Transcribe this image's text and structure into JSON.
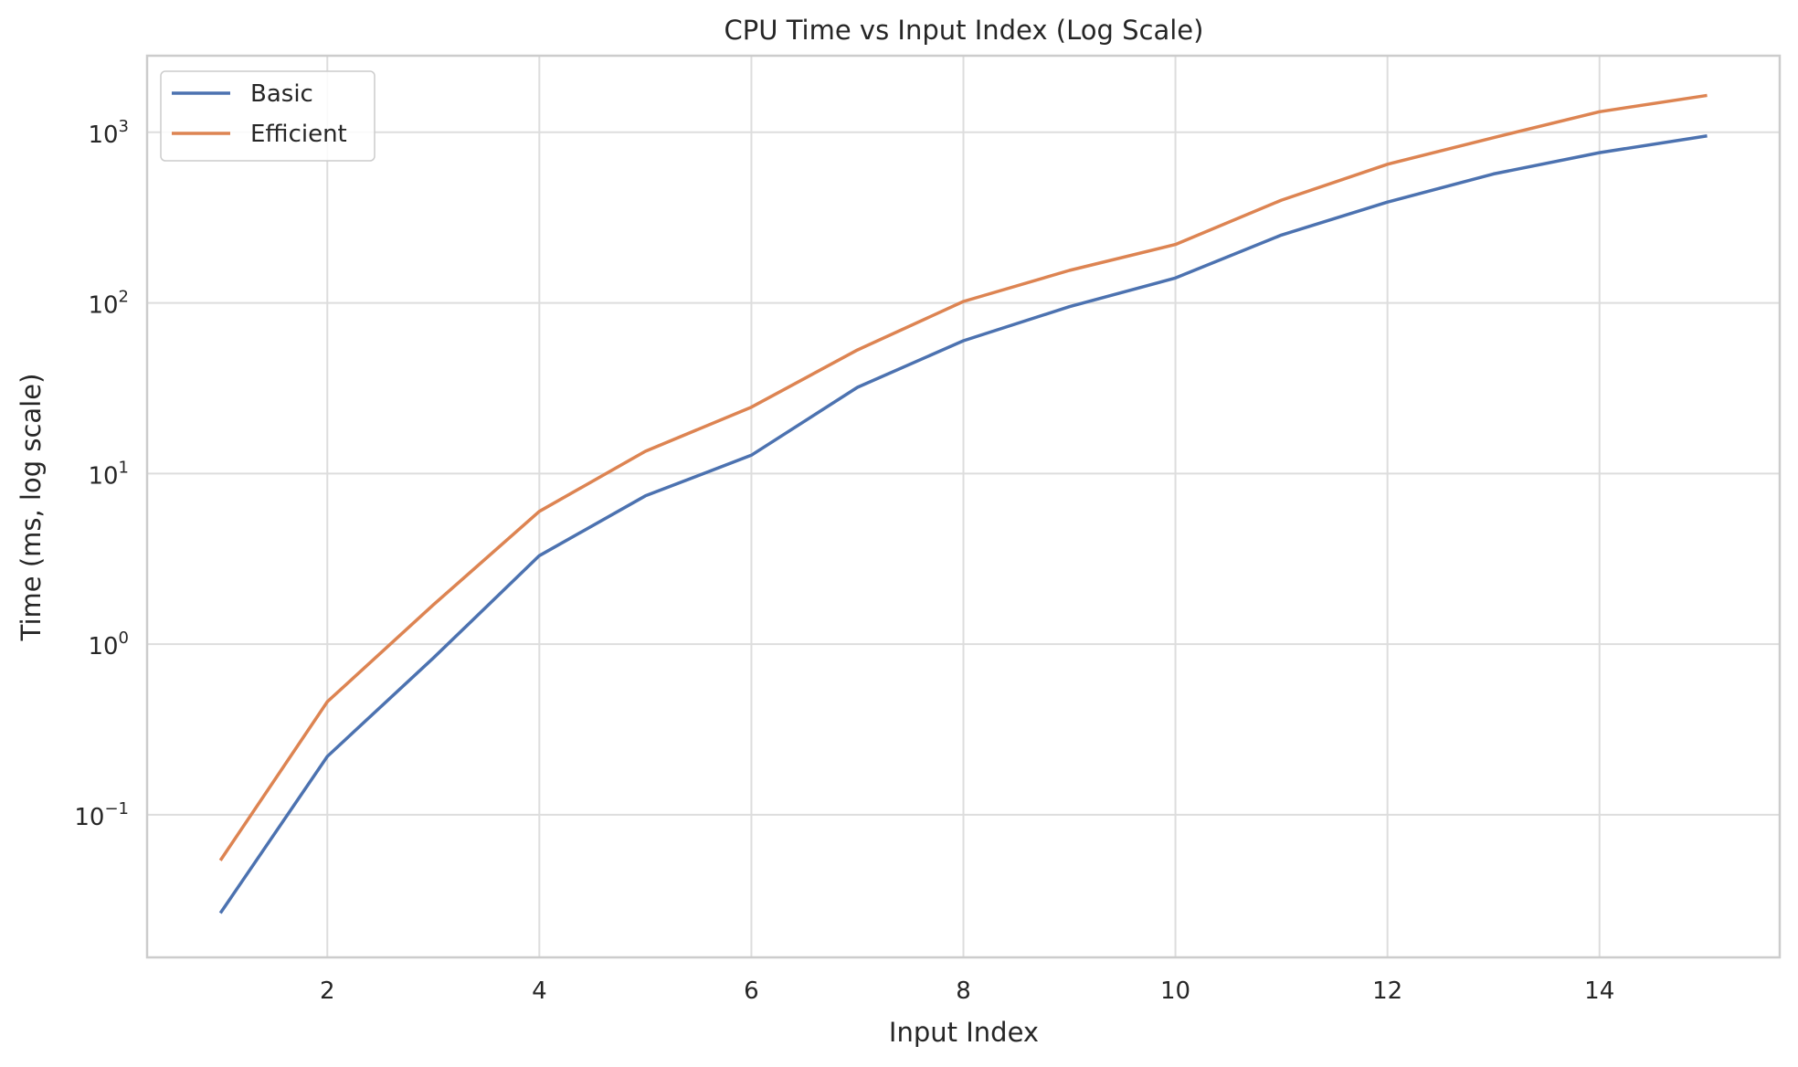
{
  "chart_data": {
    "type": "line",
    "title": "CPU Time vs Input Index (Log Scale)",
    "xlabel": "Input Index",
    "ylabel": "Time (ms, log scale)",
    "x": [
      1,
      2,
      3,
      4,
      5,
      6,
      7,
      8,
      9,
      10,
      11,
      12,
      13,
      14,
      15
    ],
    "xlim": [
      0.3,
      15.7
    ],
    "ylim": [
      0.0146,
      2810
    ],
    "yscale": "log",
    "x_ticks": [
      2,
      4,
      6,
      8,
      10,
      12,
      14
    ],
    "x_tick_labels": [
      "2",
      "4",
      "6",
      "8",
      "10",
      "12",
      "14"
    ],
    "y_ticks": [
      0.1,
      1,
      10,
      100,
      1000
    ],
    "y_tick_labels": [
      {
        "base": "10",
        "exp": "−1"
      },
      {
        "base": "10",
        "exp": "0"
      },
      {
        "base": "10",
        "exp": "1"
      },
      {
        "base": "10",
        "exp": "2"
      },
      {
        "base": "10",
        "exp": "3"
      }
    ],
    "grid": true,
    "legend_position": "top-left",
    "series": [
      {
        "name": "Basic",
        "color": "#4c72b0",
        "values": [
          0.027,
          0.22,
          0.83,
          3.3,
          7.4,
          12.8,
          32,
          60,
          95,
          140,
          250,
          390,
          570,
          760,
          950
        ]
      },
      {
        "name": "Efficient",
        "color": "#dd8452",
        "values": [
          0.055,
          0.46,
          1.7,
          6.0,
          13.5,
          24.5,
          53,
          102,
          155,
          220,
          400,
          650,
          930,
          1320,
          1640
        ]
      }
    ]
  }
}
